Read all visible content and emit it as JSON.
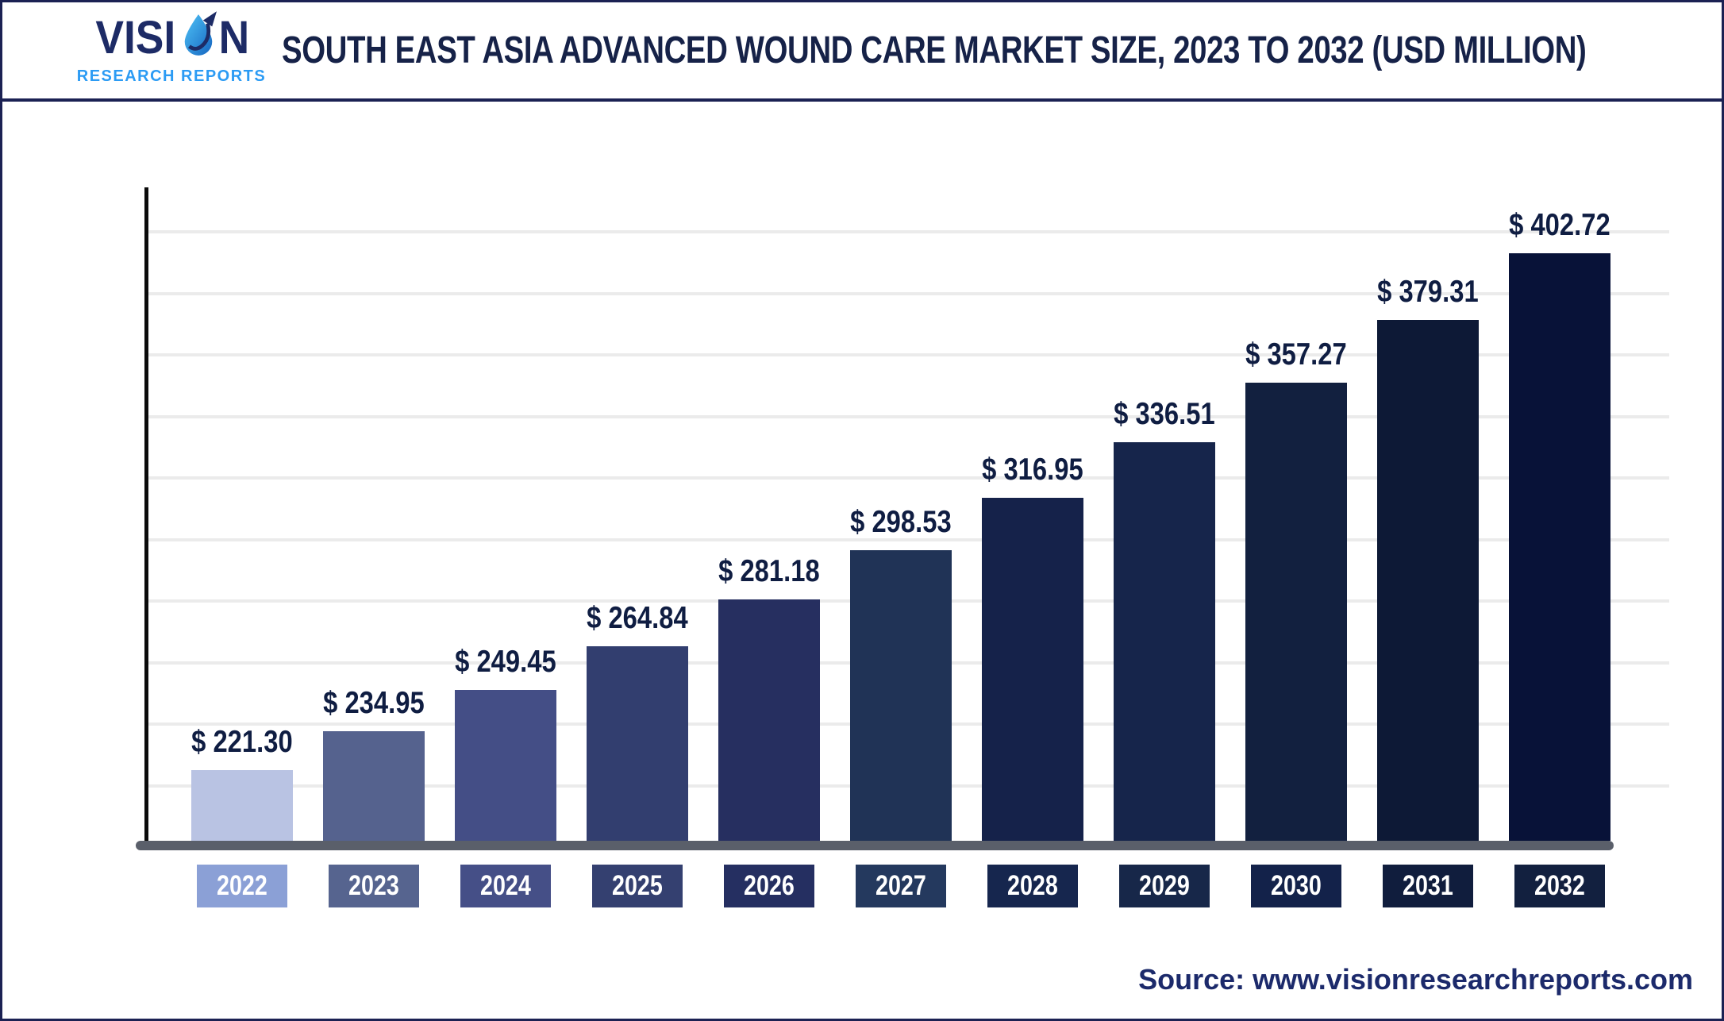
{
  "header": {
    "title": "SOUTH EAST ASIA ADVANCED WOUND CARE MARKET SIZE, 2023 TO 2032 (USD MILLION)"
  },
  "logo": {
    "word": "VISION",
    "word_start": "VISI",
    "word_end": "N",
    "subtitle": "RESEARCH REPORTS",
    "brand_navy": "#1d2b66",
    "brand_blue": "#2b9bf4"
  },
  "footer": {
    "source": "Source: www.visionresearchreports.com"
  },
  "chart_data": {
    "type": "bar",
    "title": "South East Asia Advanced Wound Care Market Size, 2023 to 2032 (USD Million)",
    "unit": "USD Million",
    "categories": [
      "2022",
      "2023",
      "2024",
      "2025",
      "2026",
      "2027",
      "2028",
      "2029",
      "2030",
      "2031",
      "2032"
    ],
    "values": [
      221.3,
      234.95,
      249.45,
      264.84,
      281.18,
      298.53,
      316.95,
      336.51,
      357.27,
      379.31,
      402.72
    ],
    "value_labels": [
      "$ 221.30",
      "$ 234.95",
      "$ 249.45",
      "$ 264.84",
      "$ 281.18",
      "$ 298.53",
      "$ 316.95",
      "$ 336.51",
      "$ 357.27",
      "$ 379.31",
      "$ 402.72"
    ],
    "bar_colors": [
      "#b9c3e3",
      "#55628e",
      "#444e86",
      "#323e6f",
      "#262f60",
      "#203356",
      "#15224a",
      "#16254b",
      "#12203f",
      "#0d1936",
      "#081238"
    ],
    "label_box_colors": [
      "#8ba0d6",
      "#56648f",
      "#454f87",
      "#344070",
      "#252f61",
      "#24395e",
      "#16264e",
      "#172749",
      "#13224a",
      "#101d3d",
      "#12203f"
    ],
    "value_label_color": "#0f1d42",
    "xlabel": "",
    "ylabel": "",
    "ylim": [
      197,
      445
    ],
    "grid": true,
    "gridline_count": 10,
    "legend": "none"
  }
}
